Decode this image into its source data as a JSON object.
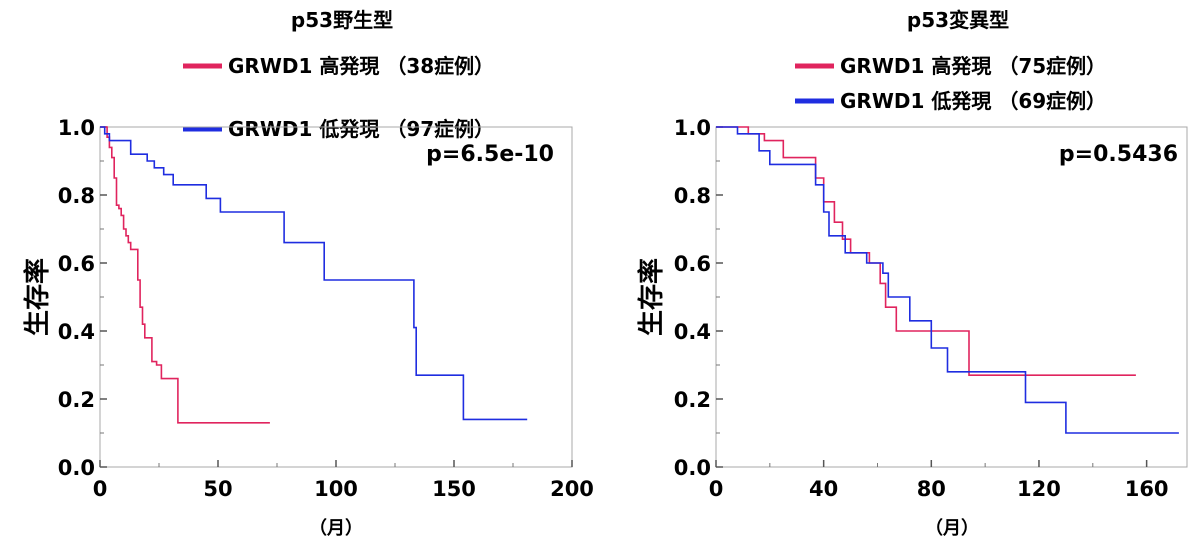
{
  "chart_data": [
    {
      "type": "line",
      "title": "p53野生型",
      "xlabel": "（月）",
      "ylabel": "生存率",
      "xlim": [
        0,
        200
      ],
      "ylim": [
        0.0,
        1.0
      ],
      "x_ticks": [
        "0",
        "50",
        "100",
        "150",
        "200"
      ],
      "y_ticks": [
        "0.0",
        "0.2",
        "0.4",
        "0.6",
        "0.8",
        "1.0"
      ],
      "annotation": "p=6.5e-10",
      "grid": false,
      "legend_position": "top",
      "series": [
        {
          "name": "GRWD1 高発現 （38症例）",
          "color": "#e0245e",
          "x": [
            0,
            3,
            4,
            5,
            6,
            7,
            8,
            9,
            10,
            11,
            12,
            13,
            15,
            16,
            17,
            18,
            19,
            20,
            22,
            24,
            26,
            29,
            33,
            72
          ],
          "y": [
            1.0,
            0.97,
            0.94,
            0.91,
            0.85,
            0.77,
            0.76,
            0.74,
            0.7,
            0.68,
            0.66,
            0.64,
            0.64,
            0.55,
            0.47,
            0.42,
            0.38,
            0.38,
            0.31,
            0.3,
            0.26,
            0.26,
            0.13,
            0.13
          ]
        },
        {
          "name": "GRWD1 低発現 （97症例）",
          "color": "#1f2de0",
          "x": [
            0,
            2,
            4,
            7,
            13,
            20,
            23,
            27,
            31,
            45,
            51,
            78,
            95,
            133,
            134,
            154,
            181
          ],
          "y": [
            1.0,
            0.98,
            0.96,
            0.96,
            0.92,
            0.9,
            0.88,
            0.86,
            0.83,
            0.79,
            0.75,
            0.66,
            0.55,
            0.41,
            0.27,
            0.14,
            0.14
          ]
        }
      ]
    },
    {
      "type": "line",
      "title": "p53変異型",
      "xlabel": "（月）",
      "ylabel": "生存率",
      "xlim": [
        0,
        175
      ],
      "ylim": [
        0.0,
        1.0
      ],
      "x_ticks": [
        "0",
        "40",
        "80",
        "120",
        "160"
      ],
      "y_ticks": [
        "0.0",
        "0.2",
        "0.4",
        "0.6",
        "0.8",
        "1.0"
      ],
      "annotation": "p=0.5436",
      "grid": false,
      "legend_position": "top",
      "series": [
        {
          "name": "GRWD1 高発現 （75症例）",
          "color": "#e0245e",
          "x": [
            0,
            8,
            12,
            18,
            25,
            36,
            37,
            40,
            44,
            47,
            50,
            57,
            61,
            63,
            67,
            94,
            156
          ],
          "y": [
            1.0,
            1.0,
            0.98,
            0.96,
            0.91,
            0.91,
            0.85,
            0.78,
            0.72,
            0.67,
            0.63,
            0.6,
            0.54,
            0.47,
            0.4,
            0.27,
            0.27
          ]
        },
        {
          "name": "GRWD1 低発現 （69症例）",
          "color": "#1f2de0",
          "x": [
            0,
            8,
            16,
            20,
            37,
            40,
            42,
            48,
            56,
            62,
            64,
            72,
            80,
            86,
            115,
            130,
            172
          ],
          "y": [
            1.0,
            0.98,
            0.93,
            0.89,
            0.83,
            0.75,
            0.68,
            0.63,
            0.6,
            0.57,
            0.5,
            0.43,
            0.35,
            0.28,
            0.19,
            0.1,
            0.1
          ]
        }
      ]
    }
  ]
}
